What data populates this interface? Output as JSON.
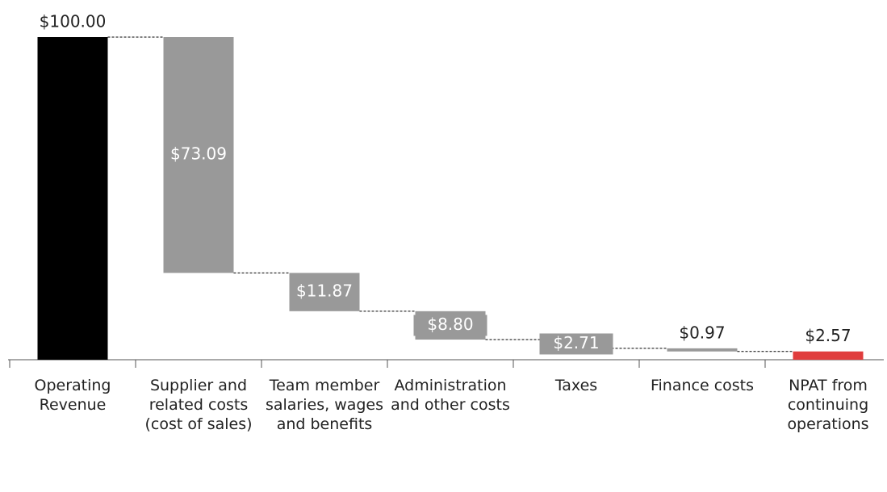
{
  "chart_data": {
    "type": "waterfall",
    "categories": [
      "Operating Revenue",
      "Supplier and related costs (cost of sales)",
      "Team member salaries, wages and benefits",
      "Administration and other costs",
      "Taxes",
      "Finance costs",
      "NPAT from continuing operations"
    ],
    "values": [
      100,
      73.09,
      11.87,
      8.8,
      2.71,
      0.97,
      2.57
    ],
    "value_labels": [
      "$100.00",
      "$73.09",
      "$11.87",
      "$8.80",
      "$2.71",
      "$0.97",
      "$2.57"
    ],
    "measures": [
      "absolute",
      "decrease",
      "decrease",
      "decrease",
      "decrease",
      "decrease",
      "total"
    ],
    "colors": {
      "absolute": "#000000",
      "decrease": "#999999",
      "total": "#e03c3c"
    }
  }
}
